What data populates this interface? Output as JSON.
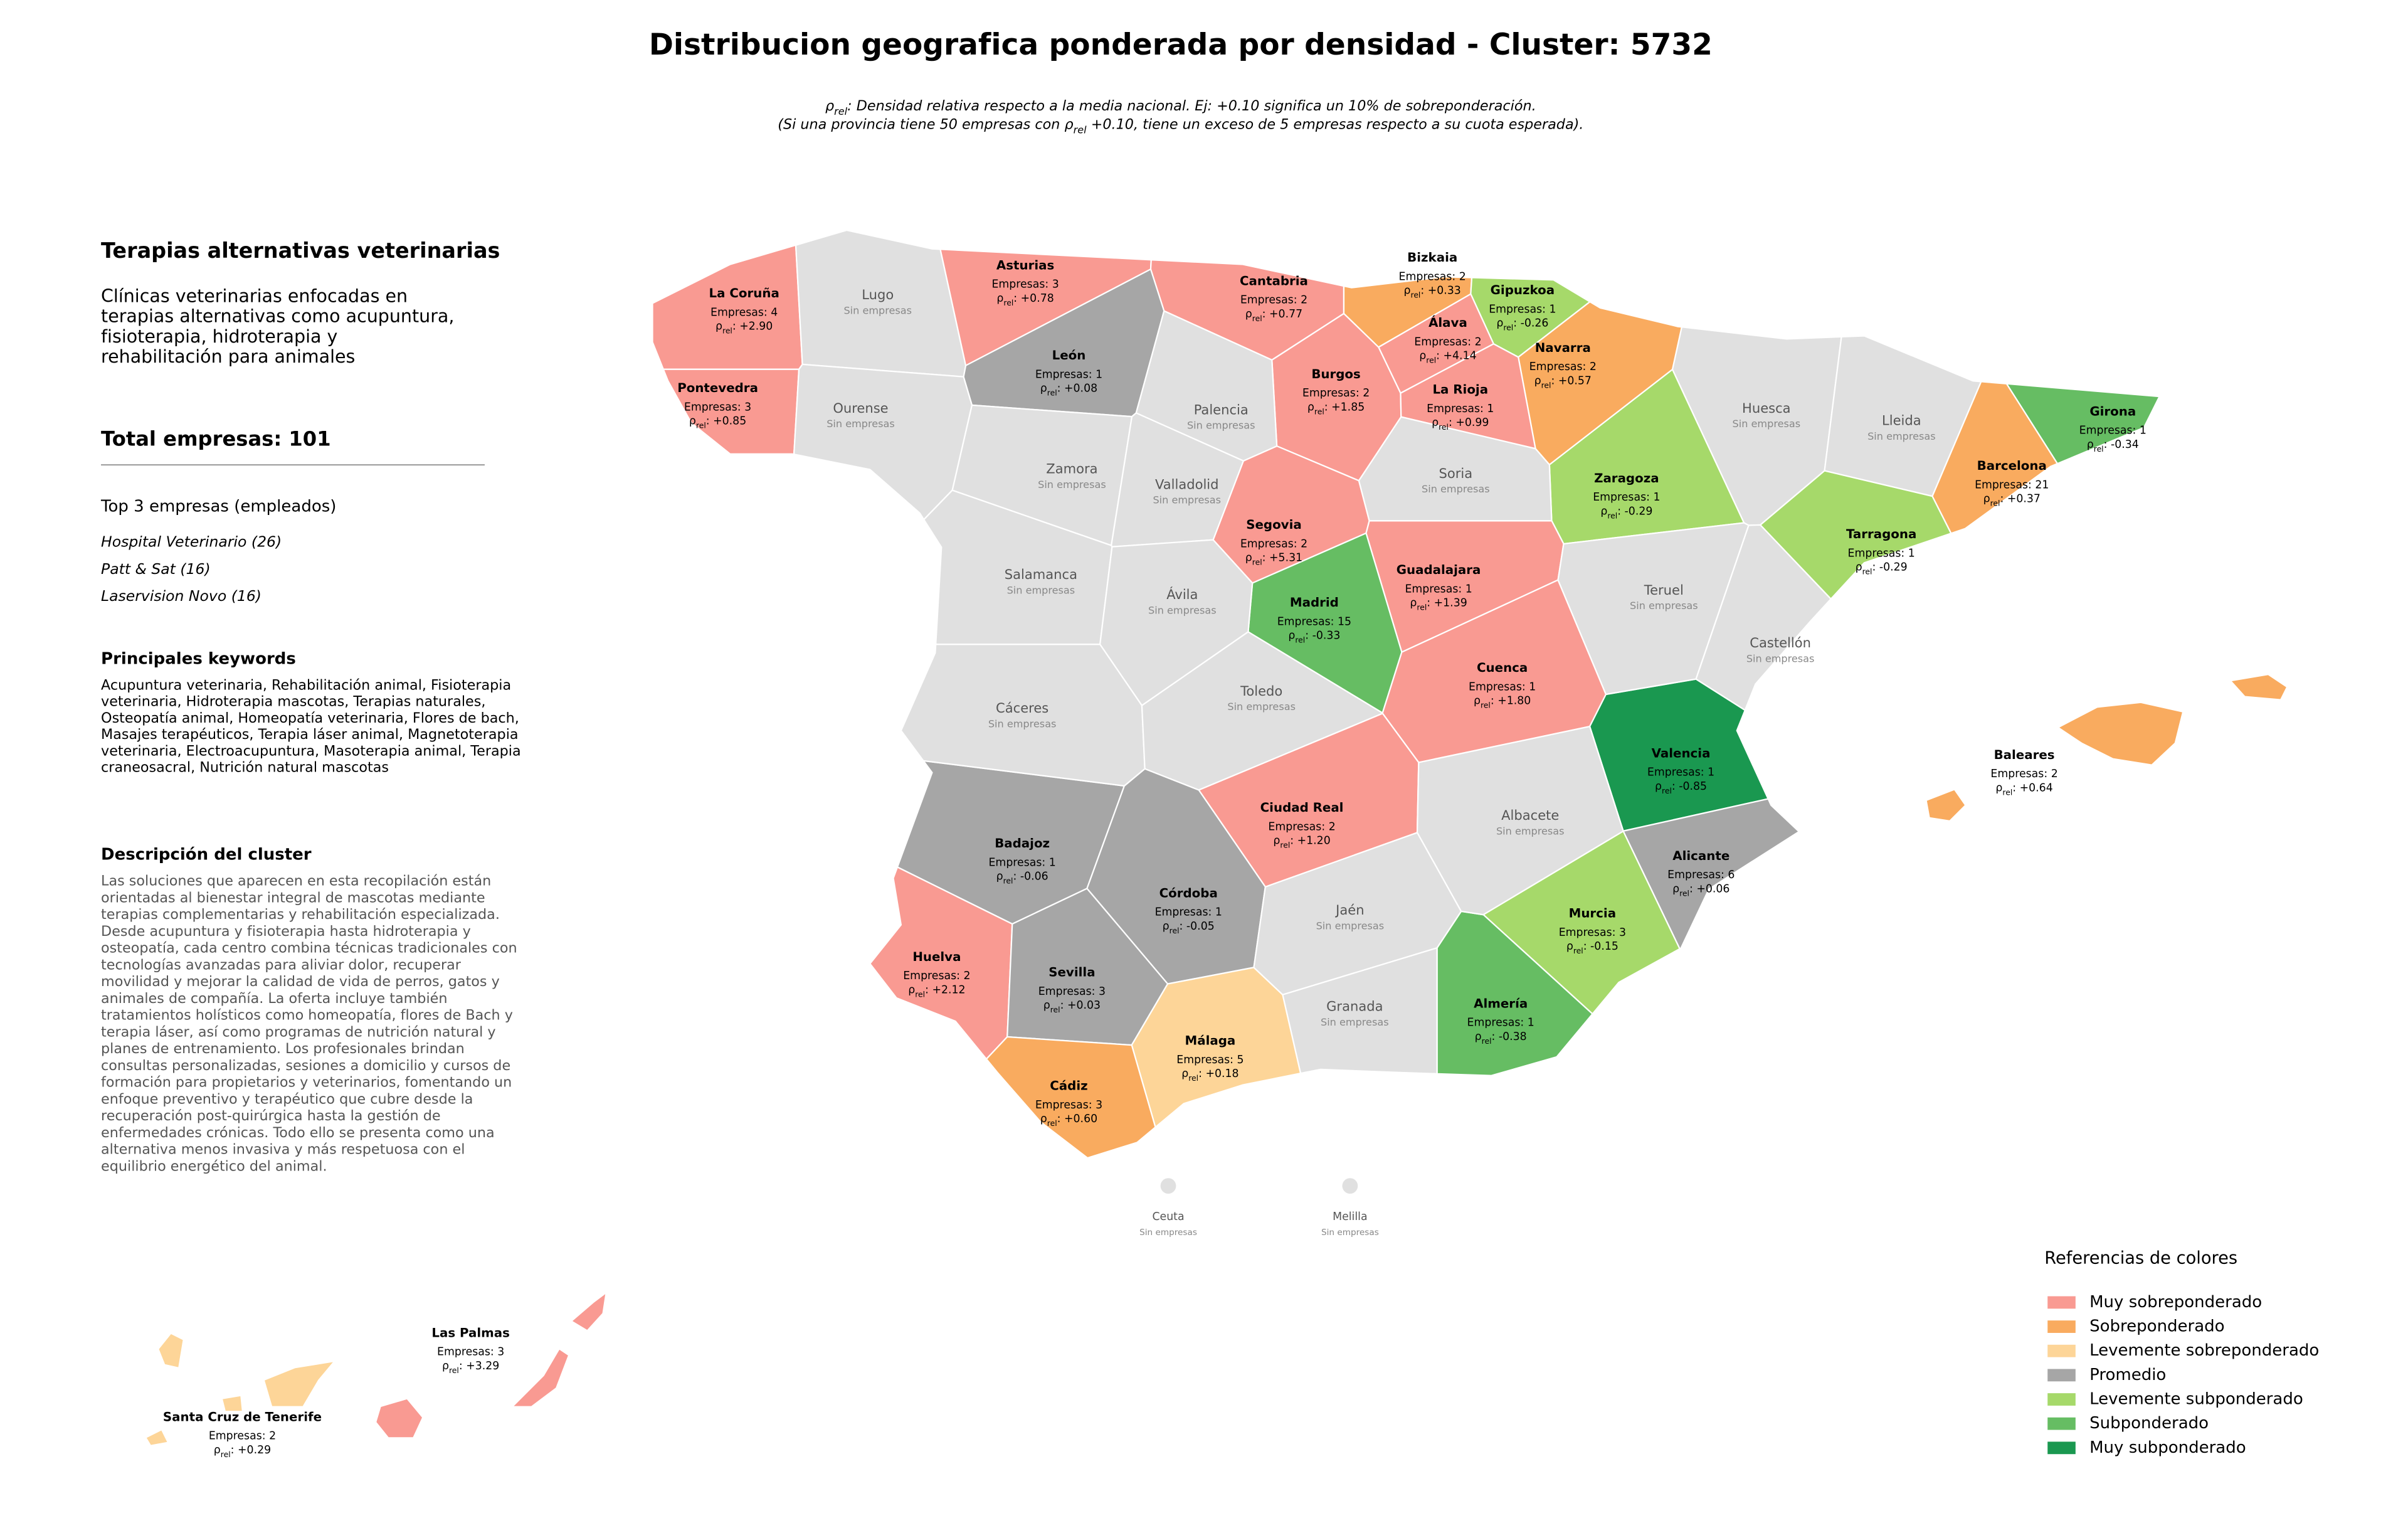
{
  "header": {
    "title": "Distribucion geografica ponderada por densidad - Cluster: 5732",
    "subtitle": [
      {
        "after": ": Densidad relativa respecto a la media nacional. Ej: +0.10 significa un 10% de sobreponderación."
      },
      {
        "before": "(Si una provincia tiene 50 empresas con ",
        "after": " +0.10, tiene un exceso de 5 empresas respecto a su cuota esperada)."
      }
    ]
  },
  "sidebar": {
    "sector": "Terapias alternativas veterinarias",
    "sector_description": [
      "Clínicas veterinarias enfocadas en",
      "terapias alternativas como acupuntura,",
      "fisioterapia, hidroterapia y",
      "rehabilitación para animales"
    ],
    "total_label": "Total empresas: ",
    "total": 101,
    "top_title": "Top 3 empresas (empleados)",
    "top": [
      "Hospital Veterinario (26)",
      "Patt & Sat (16)",
      "Laservision Novo (16)"
    ],
    "keywords_title": "Principales keywords",
    "keywords": [
      "Acupuntura veterinaria, Rehabilitación animal, Fisioterapia",
      "veterinaria, Hidroterapia mascotas, Terapias naturales,",
      "Osteopatía animal, Homeopatía veterinaria, Flores de bach,",
      "Masajes terapéuticos, Terapia láser animal, Magnetoterapia",
      "veterinaria, Electroacupuntura, Masoterapia animal, Terapia",
      "craneosacral, Nutrición natural mascotas"
    ],
    "description_title": "Descripción del cluster",
    "description": [
      "Las soluciones que aparecen en esta recopilación están",
      "orientadas al bienestar integral de mascotas mediante",
      "terapias complementarias y rehabilitación especializada.",
      "Desde acupuntura y fisioterapia hasta hidroterapia y",
      "osteopatía, cada centro combina técnicas tradicionales con",
      "tecnologías avanzadas para aliviar dolor, recuperar",
      "movilidad y mejorar la calidad de vida de perros, gatos y",
      "animales de compañía. La oferta incluye también",
      "tratamientos holísticos como homeopatía, flores de Bach y",
      "terapia láser, así como programas de nutrición natural y",
      "planes de entrenamiento. Los profesionales brindan",
      "consultas personalizadas, sesiones a domicilio y cursos de",
      "formación para propietarios y veterinarios, fomentando un",
      "enfoque preventivo y terapéutico que cubre desde la",
      "recuperación post-quirúrgica hasta la gestión de",
      "enfermedades crónicas. Todo ello se presenta como una",
      "alternativa menos invasiva y más respetuosa con el",
      "equilibrio energético del animal."
    ]
  },
  "map": {
    "rho": {
      "symbol": "ρ",
      "sub": "rel",
      "sep": ": "
    },
    "empresas_prefix": "Empresas: ",
    "no_data_label": "Sin empresas",
    "no_data_color": "#e0e0e0",
    "provinces": [
      {
        "name": "La Coruña",
        "empresas": 4,
        "rho": 2.9,
        "rho_label": "+2.90",
        "color": "#f99a92"
      },
      {
        "name": "Pontevedra",
        "empresas": 3,
        "rho": 0.85,
        "rho_label": "+0.85",
        "color": "#f99a92"
      },
      {
        "name": "Asturias",
        "empresas": 3,
        "rho": 0.78,
        "rho_label": "+0.78",
        "color": "#f99a92"
      },
      {
        "name": "Cantabria",
        "empresas": 2,
        "rho": 0.77,
        "rho_label": "+0.77",
        "color": "#f99a92"
      },
      {
        "name": "Bizkaia",
        "empresas": 2,
        "rho": 0.33,
        "rho_label": "+0.33",
        "color": "#f9ab5f"
      },
      {
        "name": "Gipuzkoa",
        "empresas": 1,
        "rho": -0.26,
        "color": "#a6d96a"
      },
      {
        "name": "Álava",
        "empresas": 2,
        "rho": 4.14,
        "rho_label": "+4.14",
        "color": "#f99a92"
      },
      {
        "name": "Navarra",
        "empresas": 2,
        "rho": 0.57,
        "rho_label": "+0.57",
        "color": "#f9ab5f"
      },
      {
        "name": "León",
        "empresas": 1,
        "rho": 0.08,
        "rho_label": "+0.08",
        "color": "#a6a6a6"
      },
      {
        "name": "Burgos",
        "empresas": 2,
        "rho": 1.85,
        "rho_label": "+1.85",
        "color": "#f99a92"
      },
      {
        "name": "La Rioja",
        "empresas": 1,
        "rho": 0.99,
        "rho_label": "+0.99",
        "color": "#f99a92"
      },
      {
        "name": "Girona",
        "empresas": 1,
        "rho": -0.34,
        "color": "#66bd63"
      },
      {
        "name": "Barcelona",
        "empresas": 21,
        "rho": 0.37,
        "rho_label": "+0.37",
        "color": "#f9ab5f"
      },
      {
        "name": "Zaragoza",
        "empresas": 1,
        "rho": -0.29,
        "color": "#a6d96a"
      },
      {
        "name": "Tarragona",
        "empresas": 1,
        "rho": -0.29,
        "color": "#a6d96a"
      },
      {
        "name": "Segovia",
        "empresas": 2,
        "rho": 5.31,
        "rho_label": "+5.31",
        "color": "#f99a92"
      },
      {
        "name": "Guadalajara",
        "empresas": 1,
        "rho": 1.39,
        "rho_label": "+1.39",
        "color": "#f99a92"
      },
      {
        "name": "Madrid",
        "empresas": 15,
        "rho": -0.33,
        "color": "#66bd63"
      },
      {
        "name": "Cuenca",
        "empresas": 1,
        "rho": 1.8,
        "rho_label": "+1.80",
        "color": "#f99a92"
      },
      {
        "name": "Valencia",
        "empresas": 1,
        "rho": -0.85,
        "color": "#1a9850"
      },
      {
        "name": "Baleares",
        "empresas": 2,
        "rho": 0.64,
        "rho_label": "+0.64",
        "color": "#f9ab5f"
      },
      {
        "name": "Ciudad Real",
        "empresas": 2,
        "rho": 1.2,
        "rho_label": "+1.20",
        "color": "#f99a92"
      },
      {
        "name": "Badajoz",
        "empresas": 1,
        "rho": -0.06,
        "color": "#a6a6a6"
      },
      {
        "name": "Alicante",
        "empresas": 6,
        "rho": 0.06,
        "rho_label": "+0.06",
        "color": "#a6a6a6"
      },
      {
        "name": "Córdoba",
        "empresas": 1,
        "rho": -0.05,
        "color": "#a6a6a6"
      },
      {
        "name": "Murcia",
        "empresas": 3,
        "rho": -0.15,
        "color": "#a6d96a"
      },
      {
        "name": "Huelva",
        "empresas": 2,
        "rho": 2.12,
        "rho_label": "+2.12",
        "color": "#f99a92"
      },
      {
        "name": "Sevilla",
        "empresas": 3,
        "rho": 0.03,
        "rho_label": "+0.03",
        "color": "#a6a6a6"
      },
      {
        "name": "Almería",
        "empresas": 1,
        "rho": -0.38,
        "color": "#66bd63"
      },
      {
        "name": "Málaga",
        "empresas": 5,
        "rho": 0.18,
        "rho_label": "+0.18",
        "color": "#fdd598"
      },
      {
        "name": "Cádiz",
        "empresas": 3,
        "rho": 0.6,
        "rho_label": "+0.60",
        "color": "#f9ab5f"
      },
      {
        "name": "Las Palmas",
        "empresas": 3,
        "rho": 3.29,
        "rho_label": "+3.29",
        "color": "#f99a92"
      },
      {
        "name": "Santa Cruz de Tenerife",
        "empresas": 2,
        "rho": 0.29,
        "rho_label": "+0.29",
        "color": "#fdd598"
      },
      {
        "name": "Lugo"
      },
      {
        "name": "Ourense"
      },
      {
        "name": "Palencia"
      },
      {
        "name": "Huesca"
      },
      {
        "name": "Lleida"
      },
      {
        "name": "Zamora"
      },
      {
        "name": "Soria"
      },
      {
        "name": "Valladolid"
      },
      {
        "name": "Salamanca"
      },
      {
        "name": "Ávila"
      },
      {
        "name": "Teruel"
      },
      {
        "name": "Castellón"
      },
      {
        "name": "Cáceres"
      },
      {
        "name": "Toledo"
      },
      {
        "name": "Albacete"
      },
      {
        "name": "Jaén"
      },
      {
        "name": "Granada"
      },
      {
        "name": "Ceuta"
      },
      {
        "name": "Melilla"
      }
    ]
  },
  "legend": {
    "title": "Referencias de colores",
    "items": [
      {
        "name": "Muy sobreponderado",
        "color": "#f99a92"
      },
      {
        "name": "Sobreponderado",
        "color": "#f9ab5f"
      },
      {
        "name": "Levemente sobreponderado",
        "color": "#fdd598"
      },
      {
        "name": "Promedio",
        "color": "#a6a6a6"
      },
      {
        "name": "Levemente subponderado",
        "color": "#a6d96a"
      },
      {
        "name": "Subponderado",
        "color": "#66bd63"
      },
      {
        "name": "Muy subponderado",
        "color": "#1a9850"
      }
    ]
  }
}
